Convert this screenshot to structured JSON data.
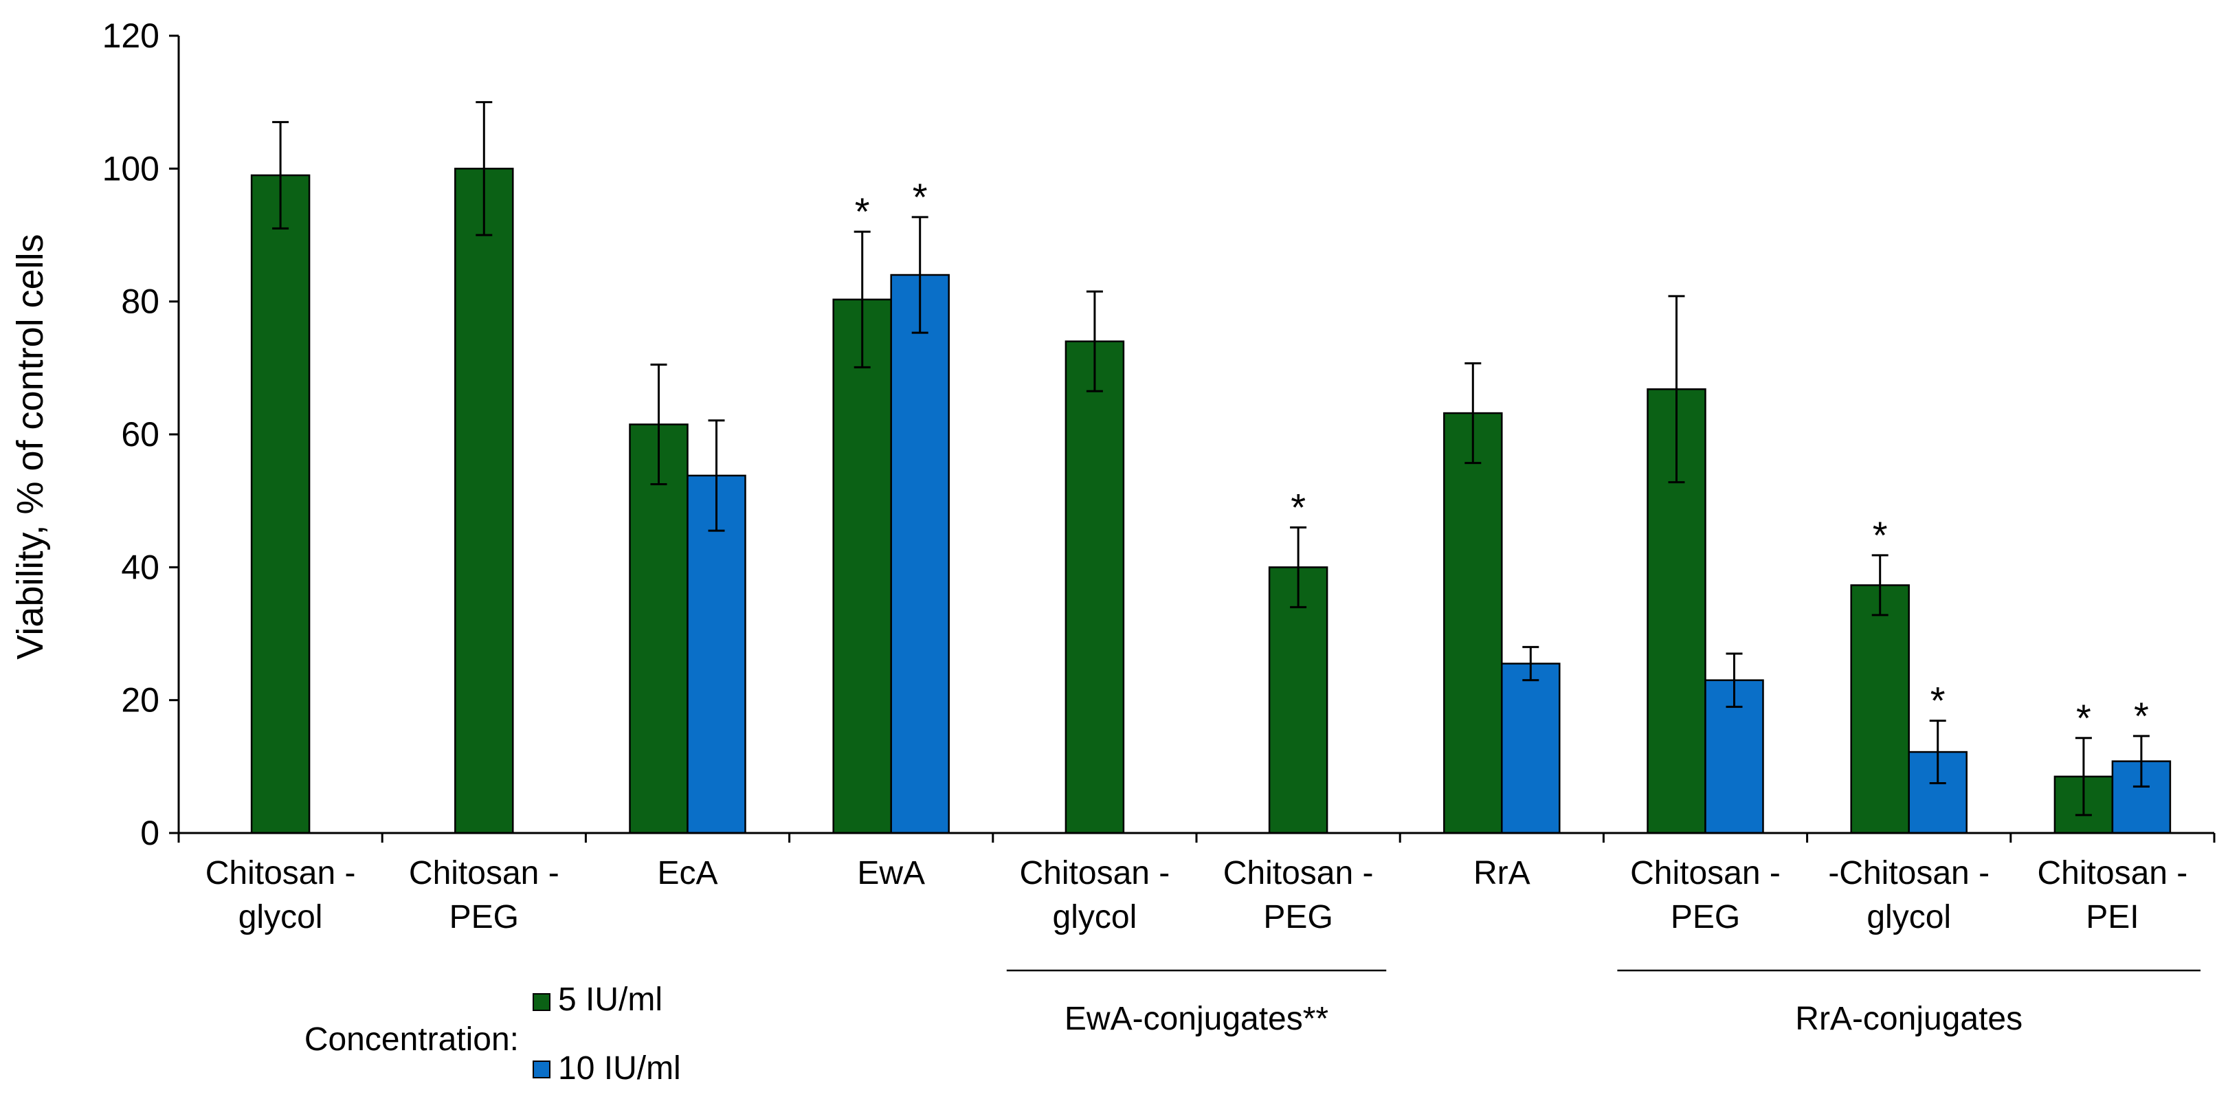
{
  "chart_data": {
    "type": "bar",
    "ylabel": "Viability, % of control cells",
    "ylim": [
      0,
      120
    ],
    "yticks": [
      0,
      20,
      40,
      60,
      80,
      100,
      120
    ],
    "grid": false,
    "legend_placement": "bottom-left",
    "legend_title": "Concentration:",
    "series": [
      {
        "name": "5 IU/ml",
        "color": "#0b6115",
        "values": [
          99,
          100,
          61.5,
          80.3,
          74,
          40,
          63.2,
          66.8,
          37.3,
          8.5
        ]
      },
      {
        "name": "10 IU/ml",
        "color": "#0a6fc8",
        "values": [
          null,
          null,
          53.8,
          84,
          null,
          null,
          25.5,
          23,
          12.2,
          10.8
        ]
      }
    ],
    "errors": [
      [
        8,
        10,
        9,
        10.2,
        7.5,
        6,
        7.5,
        14,
        4.5,
        5.8
      ],
      [
        null,
        null,
        8.3,
        8.7,
        null,
        null,
        2.5,
        4,
        4.7,
        3.8
      ]
    ],
    "significance": [
      [
        "",
        "",
        "",
        "*",
        "",
        "*",
        "",
        "",
        "*",
        "*"
      ],
      [
        "",
        "",
        "",
        "*",
        "",
        "",
        "",
        "",
        "*",
        "*"
      ]
    ],
    "categories": [
      [
        "Chitosan -",
        "glycol"
      ],
      [
        "Chitosan -",
        "PEG"
      ],
      [
        "EcA"
      ],
      [
        "EwA"
      ],
      [
        "Chitosan -",
        "glycol"
      ],
      [
        "Chitosan -",
        "PEG"
      ],
      [
        "RrA"
      ],
      [
        "Chitosan -",
        "PEG"
      ],
      [
        "-Chitosan -",
        "glycol"
      ],
      [
        "Chitosan -",
        "PEI"
      ]
    ],
    "groups": [
      {
        "label": "EwA-conjugates**",
        "from": 4,
        "to": 5
      },
      {
        "label": "RrA-conjugates",
        "from": 7,
        "to": 9
      }
    ]
  }
}
